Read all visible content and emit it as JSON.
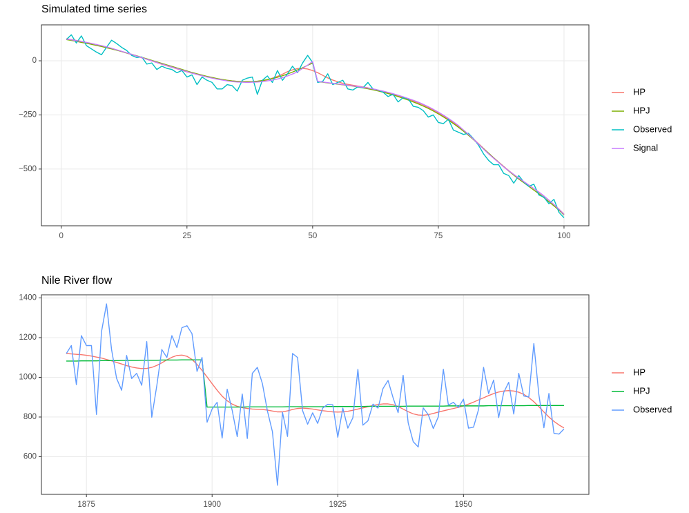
{
  "chart_data": [
    {
      "type": "line",
      "title": "Simulated time series",
      "grid": true,
      "legend": "right",
      "x": [
        1,
        2,
        3,
        4,
        5,
        6,
        7,
        8,
        9,
        10,
        11,
        12,
        13,
        14,
        15,
        16,
        17,
        18,
        19,
        20,
        21,
        22,
        23,
        24,
        25,
        26,
        27,
        28,
        29,
        30,
        31,
        32,
        33,
        34,
        35,
        36,
        37,
        38,
        39,
        40,
        41,
        42,
        43,
        44,
        45,
        46,
        47,
        48,
        49,
        50,
        51,
        52,
        53,
        54,
        55,
        56,
        57,
        58,
        59,
        60,
        61,
        62,
        63,
        64,
        65,
        66,
        67,
        68,
        69,
        70,
        71,
        72,
        73,
        74,
        75,
        76,
        77,
        78,
        79,
        80,
        81,
        82,
        83,
        84,
        85,
        86,
        87,
        88,
        89,
        90,
        91,
        92,
        93,
        94,
        95,
        96,
        97,
        98,
        99,
        100
      ],
      "xlim": [
        -3.95,
        104.95
      ],
      "xticks": [
        0,
        25,
        50,
        75,
        100
      ],
      "ylim": [
        -762,
        166
      ],
      "yticks": [
        {
          "value": -500,
          "label": "−500"
        },
        {
          "value": -250,
          "label": "−250"
        },
        0
      ],
      "series": [
        {
          "name": "HP",
          "color": "#F8766D",
          "values": [
            102,
            98,
            94,
            90,
            85,
            80,
            75,
            69,
            63,
            57,
            50,
            43,
            36,
            29,
            22,
            14,
            7,
            -1,
            -8,
            -16,
            -23,
            -30,
            -37,
            -44,
            -51,
            -57,
            -63,
            -69,
            -74,
            -79,
            -83,
            -87,
            -90,
            -93,
            -95,
            -96,
            -96,
            -96,
            -95,
            -92,
            -88,
            -80,
            -72,
            -62,
            -50,
            -42,
            -36,
            -35,
            -38,
            -45,
            -55,
            -67,
            -79,
            -89,
            -97,
            -104,
            -109,
            -113,
            -117,
            -121,
            -125,
            -130,
            -135,
            -141,
            -147,
            -154,
            -161,
            -168,
            -176,
            -185,
            -194,
            -204,
            -215,
            -227,
            -240,
            -254,
            -269,
            -285,
            -302,
            -320,
            -340,
            -361,
            -383,
            -405,
            -427,
            -448,
            -468,
            -488,
            -507,
            -525,
            -542,
            -558,
            -574,
            -590,
            -607,
            -625,
            -644,
            -664,
            -685,
            -708
          ]
        },
        {
          "name": "HPJ",
          "color": "#7CAE00",
          "values": [
            98,
            94,
            90,
            85,
            81,
            76,
            71,
            66,
            60,
            55,
            49,
            43,
            36,
            30,
            23,
            16,
            9,
            2,
            -5,
            -12,
            -19,
            -26,
            -33,
            -40,
            -47,
            -54,
            -60,
            -66,
            -72,
            -77,
            -82,
            -86,
            -90,
            -93,
            -95,
            -96,
            -97,
            -96,
            -94,
            -91,
            -87,
            -82,
            -76,
            -69,
            -61,
            -52,
            -42,
            -32,
            -21,
            -10,
            -96,
            -99,
            -102,
            -105,
            -108,
            -111,
            -114,
            -117,
            -121,
            -125,
            -129,
            -134,
            -139,
            -145,
            -151,
            -158,
            -165,
            -173,
            -181,
            -190,
            -199,
            -209,
            -220,
            -232,
            -245,
            -259,
            -274,
            -290,
            -307,
            -325,
            -344,
            -364,
            -385,
            -406,
            -427,
            -448,
            -469,
            -489,
            -509,
            -528,
            -546,
            -563,
            -580,
            -597,
            -614,
            -632,
            -651,
            -670,
            -690,
            -712
          ]
        },
        {
          "name": "Observed",
          "color": "#00BFC4",
          "values": [
            98,
            120,
            82,
            115,
            70,
            55,
            40,
            28,
            62,
            95,
            80,
            62,
            48,
            25,
            15,
            18,
            -15,
            -10,
            -40,
            -25,
            -35,
            -40,
            -55,
            -45,
            -75,
            -65,
            -110,
            -75,
            -90,
            -100,
            -130,
            -130,
            -110,
            -115,
            -140,
            -90,
            -80,
            -75,
            -155,
            -90,
            -70,
            -100,
            -45,
            -90,
            -60,
            -25,
            -55,
            -10,
            25,
            -8,
            -100,
            -95,
            -60,
            -110,
            -100,
            -90,
            -130,
            -135,
            -120,
            -125,
            -100,
            -130,
            -135,
            -145,
            -165,
            -155,
            -190,
            -170,
            -175,
            -210,
            -215,
            -230,
            -260,
            -250,
            -285,
            -290,
            -270,
            -320,
            -330,
            -340,
            -335,
            -360,
            -390,
            -430,
            -460,
            -480,
            -480,
            -520,
            -530,
            -565,
            -530,
            -560,
            -580,
            -570,
            -620,
            -630,
            -660,
            -640,
            -700,
            -725
          ]
        },
        {
          "name": "Signal",
          "color": "#C77CFF",
          "values": [
            100,
            97,
            93,
            89,
            85,
            80,
            75,
            70,
            64,
            58,
            51,
            44,
            37,
            30,
            22,
            15,
            7,
            0,
            -8,
            -15,
            -22,
            -29,
            -36,
            -43,
            -50,
            -57,
            -63,
            -69,
            -75,
            -80,
            -85,
            -89,
            -93,
            -96,
            -98,
            -99,
            -100,
            -99,
            -98,
            -96,
            -93,
            -89,
            -84,
            -78,
            -70,
            -61,
            -51,
            -35,
            -20,
            -3,
            -95,
            -98,
            -101,
            -104,
            -107,
            -110,
            -113,
            -116,
            -119,
            -122,
            -126,
            -130,
            -135,
            -140,
            -146,
            -152,
            -159,
            -166,
            -174,
            -182,
            -191,
            -201,
            -212,
            -224,
            -237,
            -251,
            -266,
            -282,
            -299,
            -320,
            -340,
            -362,
            -385,
            -408,
            -430,
            -450,
            -470,
            -490,
            -508,
            -525,
            -542,
            -558,
            -574,
            -590,
            -606,
            -624,
            -644,
            -664,
            -686,
            -710
          ]
        }
      ]
    },
    {
      "type": "line",
      "title": "Nile River flow",
      "grid": true,
      "legend": "right",
      "x": [
        1871,
        1872,
        1873,
        1874,
        1875,
        1876,
        1877,
        1878,
        1879,
        1880,
        1881,
        1882,
        1883,
        1884,
        1885,
        1886,
        1887,
        1888,
        1889,
        1890,
        1891,
        1892,
        1893,
        1894,
        1895,
        1896,
        1897,
        1898,
        1899,
        1900,
        1901,
        1902,
        1903,
        1904,
        1905,
        1906,
        1907,
        1908,
        1909,
        1910,
        1911,
        1912,
        1913,
        1914,
        1915,
        1916,
        1917,
        1918,
        1919,
        1920,
        1921,
        1922,
        1923,
        1924,
        1925,
        1926,
        1927,
        1928,
        1929,
        1930,
        1931,
        1932,
        1933,
        1934,
        1935,
        1936,
        1937,
        1938,
        1939,
        1940,
        1941,
        1942,
        1943,
        1944,
        1945,
        1946,
        1947,
        1948,
        1949,
        1950,
        1951,
        1952,
        1953,
        1954,
        1955,
        1956,
        1957,
        1958,
        1959,
        1960,
        1961,
        1962,
        1963,
        1964,
        1965,
        1966,
        1967,
        1968,
        1969,
        1970
      ],
      "xlim": [
        1866.05,
        1974.95
      ],
      "xticks": [
        1875,
        1900,
        1925,
        1950
      ],
      "ylim": [
        410.3,
        1415.7
      ],
      "yticks": [
        600,
        800,
        1000,
        1200,
        1400
      ],
      "series": [
        {
          "name": "HP",
          "color": "#F8766D",
          "values": [
            1120,
            1118,
            1116,
            1114,
            1111,
            1107,
            1102,
            1097,
            1090,
            1083,
            1075,
            1067,
            1059,
            1052,
            1047,
            1044,
            1045,
            1050,
            1060,
            1073,
            1088,
            1101,
            1110,
            1112,
            1106,
            1090,
            1065,
            1035,
            1002,
            968,
            935,
            905,
            882,
            865,
            854,
            847,
            843,
            840,
            839,
            838,
            835,
            830,
            826,
            826,
            831,
            838,
            843,
            845,
            843,
            840,
            836,
            832,
            829,
            826,
            825,
            826,
            829,
            834,
            840,
            846,
            852,
            858,
            863,
            866,
            866,
            862,
            853,
            840,
            827,
            816,
            810,
            809,
            812,
            818,
            825,
            831,
            837,
            843,
            849,
            856,
            865,
            875,
            886,
            897,
            908,
            918,
            926,
            931,
            933,
            931,
            925,
            914,
            898,
            877,
            852,
            825,
            800,
            778,
            760,
            745
          ]
        },
        {
          "name": "HPJ",
          "color": "#00BA38",
          "values": [
            1082,
            1082,
            1082,
            1083,
            1083,
            1083,
            1083,
            1084,
            1084,
            1084,
            1084,
            1085,
            1085,
            1085,
            1085,
            1086,
            1086,
            1086,
            1086,
            1087,
            1087,
            1087,
            1087,
            1088,
            1088,
            1088,
            1088,
            1088,
            850,
            850,
            850,
            850,
            850,
            850,
            850,
            850,
            851,
            851,
            851,
            851,
            851,
            851,
            851,
            851,
            852,
            852,
            852,
            852,
            852,
            852,
            852,
            852,
            853,
            853,
            853,
            853,
            853,
            853,
            853,
            853,
            854,
            854,
            854,
            854,
            854,
            854,
            854,
            854,
            855,
            855,
            855,
            855,
            855,
            855,
            855,
            855,
            856,
            856,
            856,
            856,
            856,
            856,
            856,
            856,
            857,
            857,
            857,
            857,
            857,
            857,
            857,
            857,
            858,
            858,
            858,
            858,
            858,
            858,
            858,
            858
          ]
        },
        {
          "name": "Observed",
          "color": "#619CFF",
          "values": [
            1120,
            1160,
            963,
            1210,
            1160,
            1160,
            813,
            1230,
            1370,
            1140,
            995,
            935,
            1110,
            994,
            1020,
            960,
            1180,
            799,
            958,
            1140,
            1100,
            1210,
            1150,
            1250,
            1260,
            1220,
            1030,
            1100,
            774,
            840,
            874,
            694,
            940,
            833,
            701,
            916,
            692,
            1020,
            1050,
            969,
            831,
            726,
            456,
            824,
            702,
            1120,
            1100,
            832,
            764,
            821,
            768,
            845,
            864,
            862,
            698,
            845,
            744,
            796,
            1040,
            759,
            781,
            865,
            845,
            944,
            984,
            897,
            822,
            1010,
            771,
            676,
            649,
            846,
            812,
            742,
            801,
            1040,
            860,
            874,
            848,
            890,
            744,
            749,
            838,
            1050,
            918,
            986,
            797,
            923,
            975,
            815,
            1020,
            906,
            901,
            1170,
            912,
            746,
            919,
            718,
            714,
            740
          ]
        }
      ]
    }
  ]
}
